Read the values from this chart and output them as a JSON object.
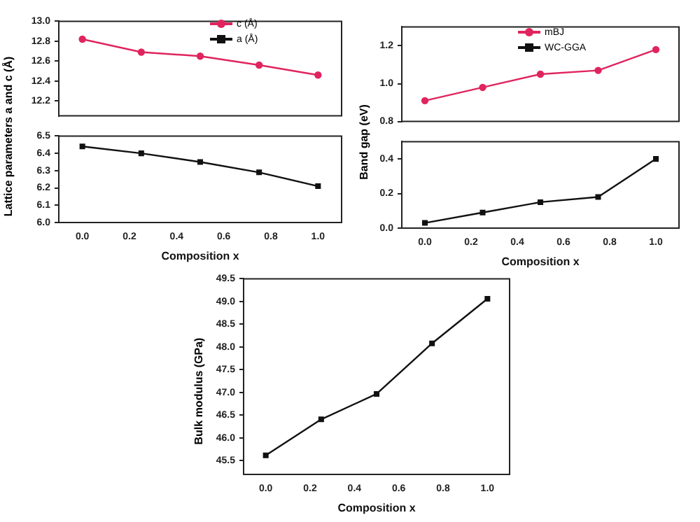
{
  "chart_data": [
    {
      "type": "line",
      "x": [
        0,
        0.25,
        0.5,
        0.75,
        1.0
      ],
      "xlim": [
        -0.1,
        1.1
      ],
      "ylim": [
        12.05,
        13.0
      ],
      "yticks": [
        {
          "value": 12.2,
          "label": "12.2"
        },
        {
          "value": 12.4,
          "label": "12.4"
        },
        {
          "value": 12.6,
          "label": "12.6"
        },
        {
          "value": 12.8,
          "label": "12.8"
        },
        {
          "value": 13,
          "label": "13.0"
        }
      ],
      "tick_labels": "y",
      "legend": "top",
      "grid": false,
      "series": [
        {
          "name": "c (Å)",
          "color": "#e0245e",
          "marker": "circle",
          "values": [
            12.82,
            12.69,
            12.65,
            12.56,
            12.46
          ]
        }
      ]
    },
    {
      "type": "line",
      "x": [
        0,
        0.25,
        0.5,
        0.75,
        1.0
      ],
      "xlim": [
        -0.1,
        1.1
      ],
      "xticks": [
        {
          "value": 0,
          "label": "0.0"
        },
        {
          "value": 0.2,
          "label": "0.2"
        },
        {
          "value": 0.4,
          "label": "0.4"
        },
        {
          "value": 0.6,
          "label": "0.6"
        },
        {
          "value": 0.8,
          "label": "0.8"
        },
        {
          "value": 1,
          "label": "1.0"
        }
      ],
      "ylim": [
        6.0,
        6.5
      ],
      "yticks": [
        {
          "value": 6,
          "label": "6.0"
        },
        {
          "value": 6.1,
          "label": "6.1"
        },
        {
          "value": 6.2,
          "label": "6.2"
        },
        {
          "value": 6.3,
          "label": "6.3"
        },
        {
          "value": 6.4,
          "label": "6.4"
        },
        {
          "value": 6.5,
          "label": "6.5"
        }
      ],
      "xlabel": "Composition x",
      "ylabel": "Lattice parameters a and c (Å)",
      "legend": "top",
      "grid": false,
      "series": [
        {
          "name": "a (Å)",
          "color": "#111111",
          "marker": "square",
          "values": [
            6.44,
            6.4,
            6.35,
            6.29,
            6.21
          ]
        }
      ]
    },
    {
      "type": "line",
      "x": [
        0,
        0.25,
        0.5,
        0.75,
        1.0
      ],
      "xlim": [
        -0.1,
        1.1
      ],
      "ylim": [
        0.8,
        1.3
      ],
      "yticks": [
        {
          "value": 0.8,
          "label": "0.8"
        },
        {
          "value": 1,
          "label": "1.0"
        },
        {
          "value": 1.2,
          "label": "1.2"
        }
      ],
      "tick_labels": "y",
      "legend": "top",
      "grid": false,
      "series": [
        {
          "name": "mBJ",
          "color": "#e0245e",
          "marker": "circle",
          "values": [
            0.91,
            0.98,
            1.05,
            1.07,
            1.18
          ]
        }
      ]
    },
    {
      "type": "line",
      "x": [
        0,
        0.25,
        0.5,
        0.75,
        1.0
      ],
      "xlim": [
        -0.1,
        1.1
      ],
      "xticks": [
        {
          "value": 0,
          "label": "0.0"
        },
        {
          "value": 0.2,
          "label": "0.2"
        },
        {
          "value": 0.4,
          "label": "0.4"
        },
        {
          "value": 0.6,
          "label": "0.6"
        },
        {
          "value": 0.8,
          "label": "0.8"
        },
        {
          "value": 1,
          "label": "1.0"
        }
      ],
      "ylim": [
        0.0,
        0.5
      ],
      "yticks": [
        {
          "value": 0,
          "label": "0.0"
        },
        {
          "value": 0.2,
          "label": "0.2"
        },
        {
          "value": 0.4,
          "label": "0.4"
        }
      ],
      "xlabel": "Composition x",
      "ylabel": "Band gap (eV)",
      "legend": "top",
      "grid": false,
      "series": [
        {
          "name": "WC-GGA",
          "color": "#111111",
          "marker": "square",
          "values": [
            0.03,
            0.09,
            0.15,
            0.18,
            0.4
          ]
        }
      ]
    },
    {
      "type": "line",
      "x": [
        0,
        0.25,
        0.5,
        0.75,
        1.0
      ],
      "xlim": [
        -0.1,
        1.1
      ],
      "xticks": [
        {
          "value": 0,
          "label": "0.0"
        },
        {
          "value": 0.2,
          "label": "0.2"
        },
        {
          "value": 0.4,
          "label": "0.4"
        },
        {
          "value": 0.6,
          "label": "0.6"
        },
        {
          "value": 0.8,
          "label": "0.8"
        },
        {
          "value": 1,
          "label": "1.0"
        }
      ],
      "ylim": [
        45.2,
        49.5
      ],
      "yticks": [
        {
          "value": 45.5,
          "label": "45.5"
        },
        {
          "value": 46,
          "label": "46.0"
        },
        {
          "value": 46.5,
          "label": "46.5"
        },
        {
          "value": 47,
          "label": "47.0"
        },
        {
          "value": 47.5,
          "label": "47.5"
        },
        {
          "value": 48,
          "label": "48.0"
        },
        {
          "value": 48.5,
          "label": "48.5"
        },
        {
          "value": 49,
          "label": "49.0"
        },
        {
          "value": 49.5,
          "label": "49.5"
        }
      ],
      "xlabel": "Composition x",
      "ylabel": "Bulk modulus (GPa)",
      "grid": false,
      "marker": "square",
      "series": [
        {
          "color": "#111111",
          "values": [
            45.62,
            46.41,
            46.97,
            48.08,
            49.06
          ]
        }
      ]
    }
  ]
}
